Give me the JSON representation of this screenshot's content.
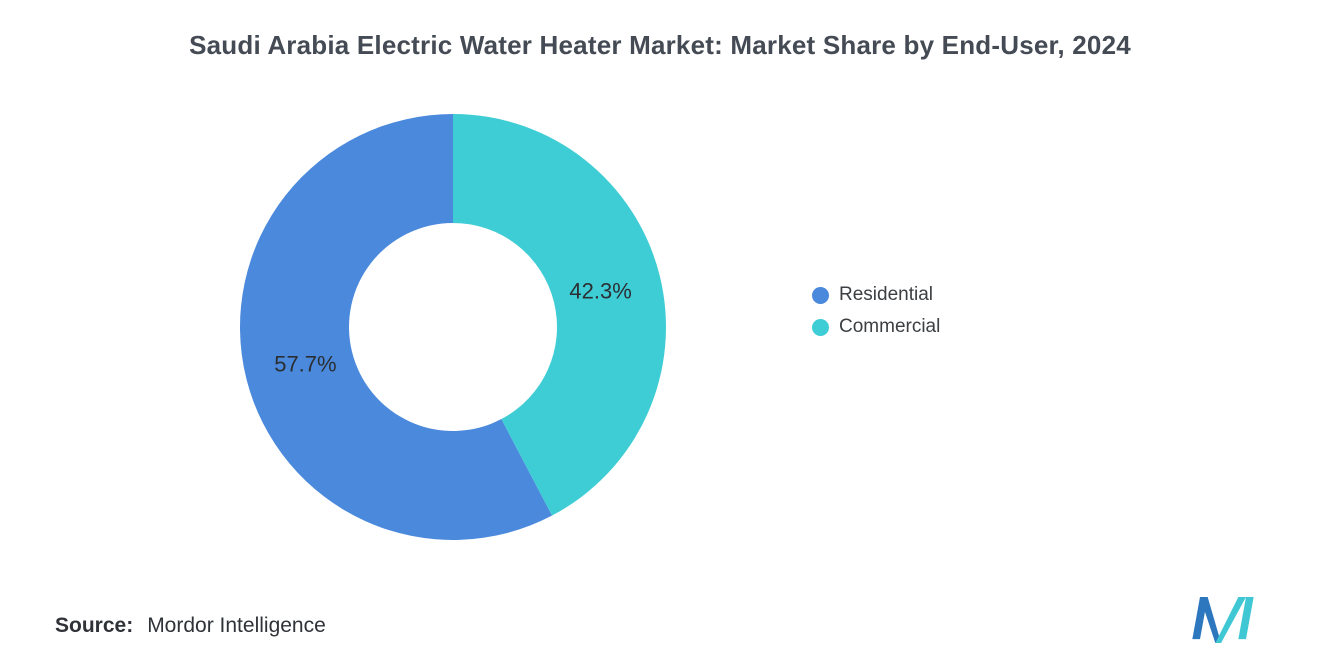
{
  "page": {
    "background": "#ffffff"
  },
  "chart_data": {
    "type": "pie",
    "subtype": "donut",
    "title": "Saudi Arabia Electric Water Heater Market: Market Share by End-User, 2024",
    "categories": [
      "Residential",
      "Commercial"
    ],
    "values": [
      57.7,
      42.3
    ],
    "unit": "%",
    "slices": [
      {
        "label": "Residential",
        "value": 57.7,
        "display": "57.7%",
        "color": "#4a89dc"
      },
      {
        "label": "Commercial",
        "value": 42.3,
        "display": "42.3%",
        "color": "#3fcdd5"
      }
    ],
    "start_angle": "top",
    "direction": "counterclockwise",
    "inner_radius_ratio": 0.49,
    "legend_position": "right",
    "legend": [
      "Residential",
      "Commercial"
    ],
    "grid": false
  },
  "source": {
    "label": "Source:",
    "value": "Mordor Intelligence"
  },
  "logo": {
    "name": "mordor-intelligence-logo",
    "blue": "#2c77be",
    "teal": "#3fc8d4"
  }
}
